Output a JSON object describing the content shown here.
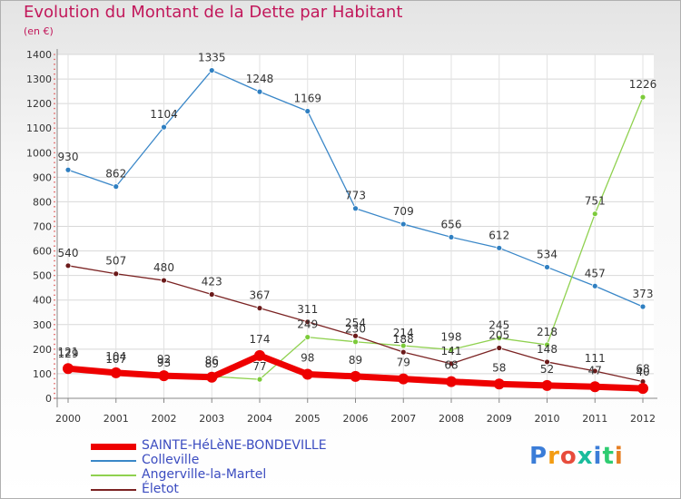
{
  "title": "Evolution du Montant de la Dette par Habitant",
  "subtitle": "(en €)",
  "brand": "Proxiti",
  "brand_colors": [
    "#3b7dd8",
    "#f39c12",
    "#e74c3c",
    "#1abc9c",
    "#3b7dd8",
    "#2ecc71",
    "#e67e22"
  ],
  "chart_data": {
    "type": "line",
    "x": [
      2000,
      2001,
      2002,
      2003,
      2004,
      2005,
      2006,
      2007,
      2008,
      2009,
      2010,
      2011,
      2012
    ],
    "ylim": [
      0,
      1400
    ],
    "yticks": [
      0,
      100,
      200,
      300,
      400,
      500,
      600,
      700,
      800,
      900,
      1000,
      1100,
      1200,
      1300,
      1400
    ],
    "grid": true,
    "legend_placement": "bottom",
    "series": [
      {
        "name": "Colleville",
        "color": "#3a87c8",
        "values": [
          930,
          862,
          1104,
          1335,
          1248,
          1169,
          773,
          709,
          656,
          612,
          534,
          457,
          373
        ]
      },
      {
        "name": "Angerville-la-Martel",
        "color": "#8fd14f",
        "values": [
          129,
          107,
          93,
          89,
          77,
          249,
          230,
          214,
          198,
          245,
          218,
          751,
          1226
        ]
      },
      {
        "name": "Életot",
        "color": "#7b2323",
        "values": [
          540,
          507,
          480,
          423,
          367,
          311,
          254,
          188,
          141,
          205,
          148,
          111,
          68
        ]
      },
      {
        "name": "SAINTE-HéLèNE-BONDEVILLE",
        "color": "#ee0000",
        "values": [
          121,
          104,
          92,
          86,
          174,
          98,
          89,
          79,
          68,
          58,
          52,
          47,
          40
        ]
      }
    ],
    "legend_order": [
      "SAINTE-HéLèNE-BONDEVILLE",
      "Colleville",
      "Angerville-la-Martel",
      "Életot"
    ]
  }
}
